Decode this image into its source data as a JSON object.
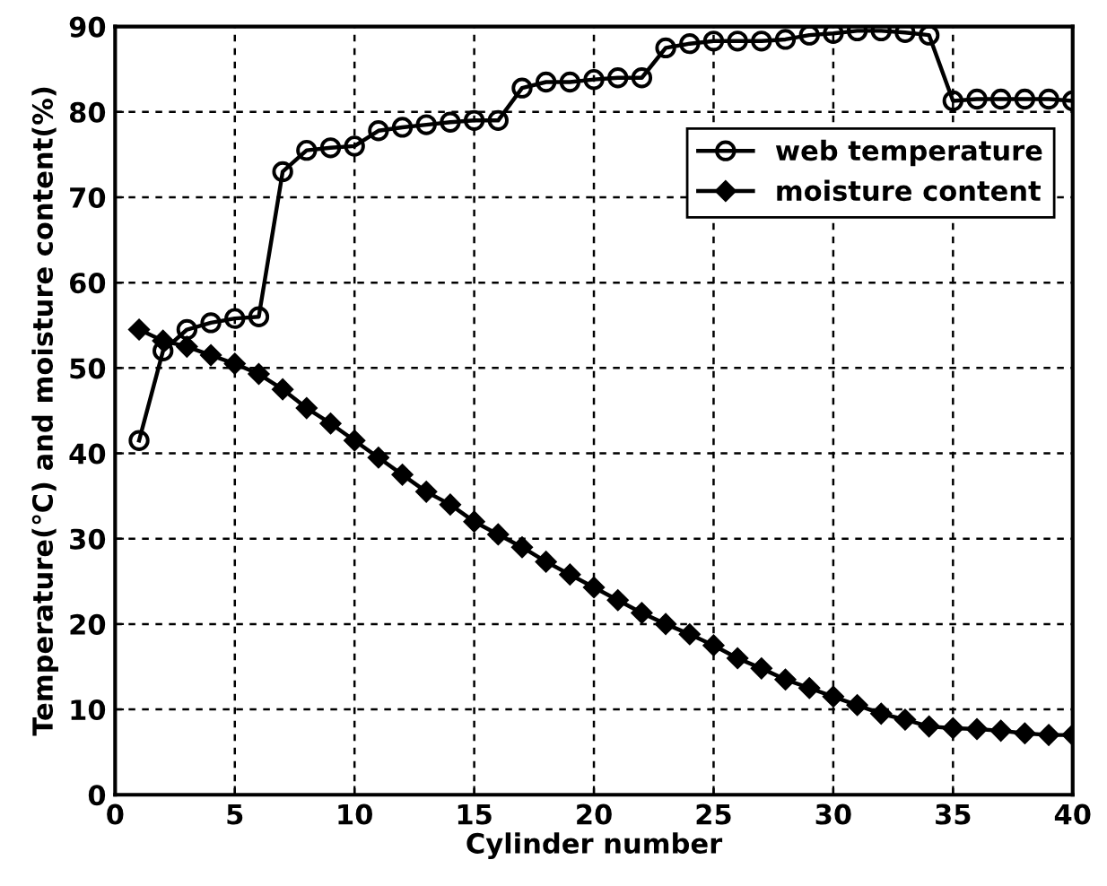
{
  "chart_data": {
    "type": "line",
    "xlabel": "Cylinder number",
    "ylabel": "Temperature(℃) and moisture content(%)",
    "x": [
      1,
      2,
      3,
      4,
      5,
      6,
      7,
      8,
      9,
      10,
      11,
      12,
      13,
      14,
      15,
      16,
      17,
      18,
      19,
      20,
      21,
      22,
      23,
      24,
      25,
      26,
      27,
      28,
      29,
      30,
      31,
      32,
      33,
      34,
      35,
      36,
      37,
      38,
      39,
      40
    ],
    "series": [
      {
        "name": "web temperature",
        "color": "#000000",
        "marker": "circle",
        "values": [
          41.5,
          52,
          54.5,
          55.3,
          55.8,
          56,
          73,
          75.5,
          75.8,
          76,
          77.8,
          78.2,
          78.5,
          78.8,
          79,
          79,
          82.8,
          83.5,
          83.5,
          83.8,
          84,
          84,
          87.5,
          88,
          88.3,
          88.3,
          88.3,
          88.5,
          89,
          89.2,
          89.5,
          89.5,
          89.3,
          89,
          81.3,
          81.5,
          81.5,
          81.5,
          81.5,
          81.3
        ]
      },
      {
        "name": "moisture content",
        "color": "#000000",
        "marker": "diamond",
        "values": [
          54.5,
          53.2,
          52.5,
          51.5,
          50.5,
          49.3,
          47.5,
          45.3,
          43.5,
          41.5,
          39.5,
          37.5,
          35.5,
          34,
          32,
          30.5,
          29,
          27.3,
          25.8,
          24.3,
          22.8,
          21.3,
          20,
          18.8,
          17.5,
          16,
          14.8,
          13.5,
          12.5,
          11.5,
          10.5,
          9.5,
          8.8,
          8,
          7.8,
          7.7,
          7.5,
          7.2,
          7,
          7
        ]
      }
    ],
    "xlim": [
      0,
      40
    ],
    "xticks": [
      0,
      5,
      10,
      15,
      20,
      25,
      30,
      35,
      40
    ],
    "ylim": [
      0,
      90
    ],
    "yticks": [
      0,
      10,
      20,
      30,
      40,
      50,
      60,
      70,
      80,
      90
    ],
    "grid": true,
    "legend": "top right",
    "line_style": "solid"
  }
}
